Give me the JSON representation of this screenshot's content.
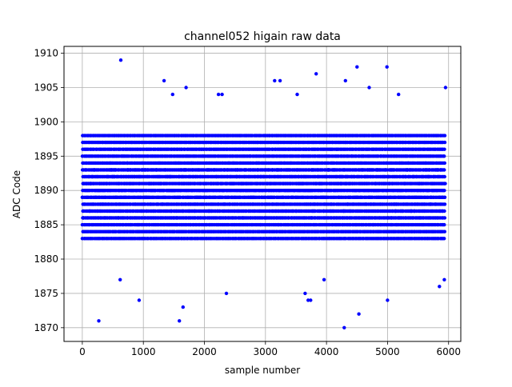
{
  "chart_data": {
    "type": "scatter",
    "title": "channel052 higain raw data",
    "xlabel": "sample number",
    "ylabel": "ADC Code",
    "xlim": [
      -300,
      6200
    ],
    "ylim": [
      1868,
      1911
    ],
    "xticks": [
      0,
      1000,
      2000,
      3000,
      4000,
      5000,
      6000
    ],
    "yticks": [
      1870,
      1875,
      1880,
      1885,
      1890,
      1895,
      1900,
      1905,
      1910
    ],
    "grid": true,
    "marker_color": "#0000ff",
    "series": [
      {
        "x_range": [
          0,
          5950
        ],
        "sample_count": 5950,
        "dense_range": [
          1883,
          1898
        ],
        "outliers": [
          {
            "x": 630,
            "y": 1909
          },
          {
            "x": 4500,
            "y": 1908
          },
          {
            "x": 4990,
            "y": 1908
          },
          {
            "x": 3830,
            "y": 1907
          },
          {
            "x": 1340,
            "y": 1906
          },
          {
            "x": 3150,
            "y": 1906
          },
          {
            "x": 3240,
            "y": 1906
          },
          {
            "x": 4310,
            "y": 1906
          },
          {
            "x": 1700,
            "y": 1905
          },
          {
            "x": 4700,
            "y": 1905
          },
          {
            "x": 5950,
            "y": 1905
          },
          {
            "x": 1480,
            "y": 1904
          },
          {
            "x": 2230,
            "y": 1904
          },
          {
            "x": 2290,
            "y": 1904
          },
          {
            "x": 3520,
            "y": 1904
          },
          {
            "x": 5180,
            "y": 1904
          },
          {
            "x": 270,
            "y": 1871
          },
          {
            "x": 1590,
            "y": 1871
          },
          {
            "x": 4290,
            "y": 1870
          },
          {
            "x": 4530,
            "y": 1872
          },
          {
            "x": 930,
            "y": 1874
          },
          {
            "x": 3700,
            "y": 1874
          },
          {
            "x": 3740,
            "y": 1874
          },
          {
            "x": 5000,
            "y": 1874
          },
          {
            "x": 2360,
            "y": 1875
          },
          {
            "x": 3650,
            "y": 1875
          },
          {
            "x": 1650,
            "y": 1873
          },
          {
            "x": 5850,
            "y": 1876
          },
          {
            "x": 5930,
            "y": 1877
          },
          {
            "x": 620,
            "y": 1877
          },
          {
            "x": 3960,
            "y": 1877
          }
        ]
      }
    ]
  }
}
